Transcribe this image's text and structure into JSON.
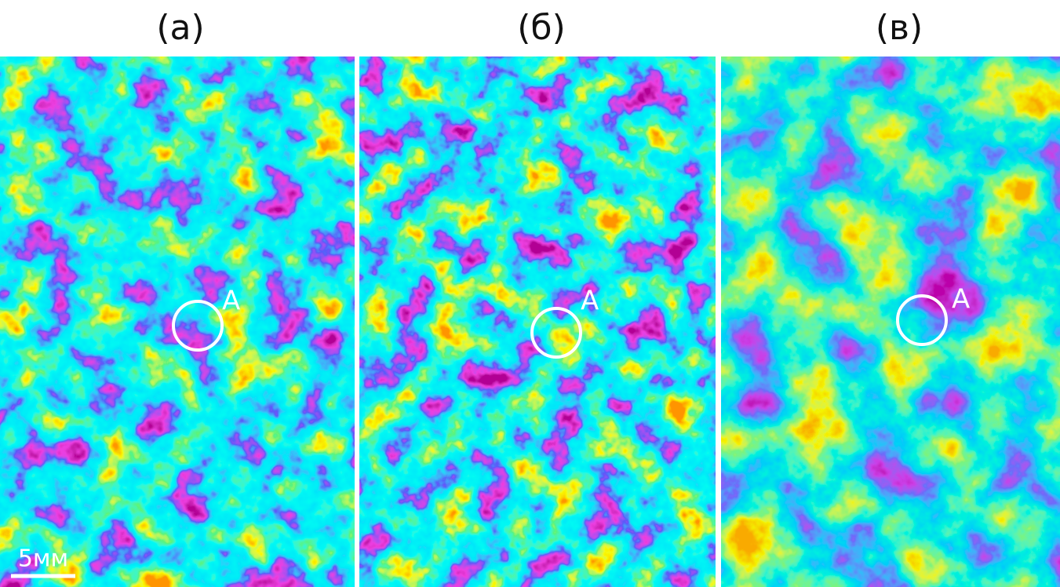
{
  "panels": [
    {
      "label": "(а)",
      "marker": "A"
    },
    {
      "label": "(б)",
      "marker": "A"
    },
    {
      "label": "(в)",
      "marker": "A"
    }
  ],
  "scale_bar": "5мм"
}
